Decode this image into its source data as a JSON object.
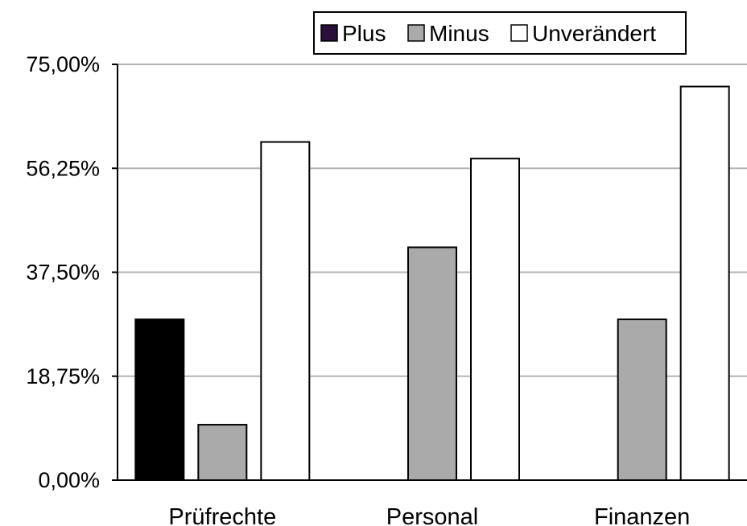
{
  "chart_data": {
    "type": "bar",
    "title": "",
    "xlabel": "",
    "ylabel": "",
    "categories": [
      "Prüfrechte",
      "Personal",
      "Finanzen"
    ],
    "series": [
      {
        "name": "Plus",
        "color": "#000000",
        "values": [
          29,
          0,
          0
        ]
      },
      {
        "name": "Minus",
        "color": "#aaaaaa",
        "values": [
          10,
          42,
          29
        ]
      },
      {
        "name": "Unverändert",
        "color": "#ffffff",
        "values": [
          61,
          58,
          71
        ]
      }
    ],
    "ylim": [
      0,
      75
    ],
    "yticks": [
      0,
      18.75,
      37.5,
      56.25,
      75
    ],
    "ytick_labels": [
      "0,00%",
      "18,75%",
      "37,50%",
      "56,25%",
      "75,00%"
    ],
    "grid": true,
    "legend_position": "top-right",
    "legend_swatch_colors": [
      "#2a0f3a",
      "#aaaaaa",
      "#ffffff"
    ]
  }
}
